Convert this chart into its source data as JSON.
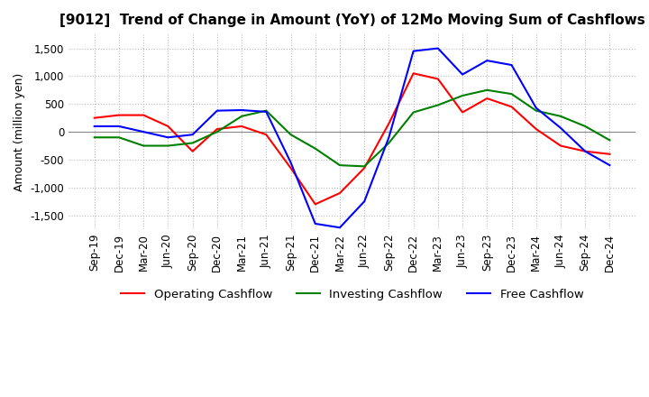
{
  "title": "[9012]  Trend of Change in Amount (YoY) of 12Mo Moving Sum of Cashflows",
  "ylabel": "Amount (million yen)",
  "ylim": [
    -1750,
    1750
  ],
  "yticks": [
    -1500,
    -1000,
    -500,
    0,
    500,
    1000,
    1500
  ],
  "x_labels": [
    "Sep-19",
    "Dec-19",
    "Mar-20",
    "Jun-20",
    "Sep-20",
    "Dec-20",
    "Mar-21",
    "Jun-21",
    "Sep-21",
    "Dec-21",
    "Mar-22",
    "Jun-22",
    "Sep-22",
    "Dec-22",
    "Mar-23",
    "Jun-23",
    "Sep-23",
    "Dec-23",
    "Mar-24",
    "Jun-24",
    "Sep-24",
    "Dec-24"
  ],
  "operating": [
    250,
    300,
    300,
    100,
    -350,
    50,
    100,
    -50,
    -650,
    -1300,
    -1100,
    -650,
    150,
    1050,
    950,
    350,
    600,
    450,
    50,
    -250,
    -350,
    -400
  ],
  "investing": [
    -100,
    -100,
    -250,
    -250,
    -200,
    0,
    280,
    380,
    -50,
    -300,
    -600,
    -620,
    -200,
    350,
    480,
    650,
    750,
    680,
    380,
    280,
    100,
    -150
  ],
  "free": [
    100,
    100,
    0,
    -100,
    -50,
    380,
    390,
    360,
    -550,
    -1650,
    -1720,
    -1250,
    -100,
    1450,
    1500,
    1030,
    1280,
    1200,
    430,
    70,
    -350,
    -600
  ],
  "operating_color": "#ff0000",
  "investing_color": "#008000",
  "free_color": "#0000ff",
  "background_color": "#ffffff",
  "grid_color": "#bbbbbb",
  "title_fontsize": 11,
  "label_fontsize": 9,
  "tick_fontsize": 8.5,
  "legend_fontsize": 9.5
}
